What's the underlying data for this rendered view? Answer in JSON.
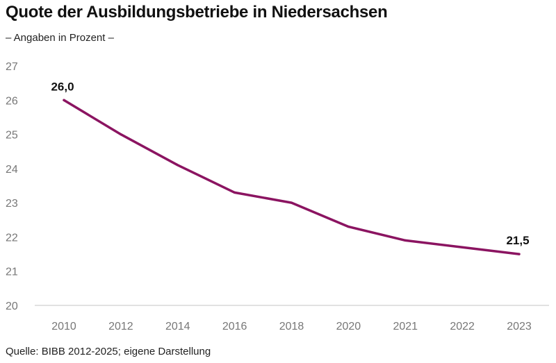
{
  "title": "Quote der Ausbildungsbetriebe in Niedersachsen",
  "subtitle": "– Angaben in Prozent  –",
  "source": "Quelle: BIBB 2012-2025; eigene Darstellung",
  "colors": {
    "line": "#8b1461",
    "axis": "#cfcfcf",
    "tick_text": "#777777"
  },
  "chart_data": {
    "type": "line",
    "title": "Quote der Ausbildungsbetriebe in Niedersachsen",
    "subtitle": "– Angaben in Prozent  –",
    "xlabel": "",
    "ylabel": "",
    "categories": [
      "2010",
      "2012",
      "2014",
      "2016",
      "2018",
      "2020",
      "2021",
      "2022",
      "2023"
    ],
    "series": [
      {
        "values": [
          26.0,
          25.0,
          24.1,
          23.3,
          23.0,
          22.3,
          21.9,
          21.7,
          21.5
        ]
      }
    ],
    "ylim": [
      20,
      27
    ],
    "yticks": [
      "20",
      "21",
      "22",
      "23",
      "24",
      "25",
      "26",
      "27"
    ],
    "grid": false,
    "data_labels": [
      {
        "index": 0,
        "text": "26,0"
      },
      {
        "index": 8,
        "text": "21,5"
      }
    ]
  }
}
